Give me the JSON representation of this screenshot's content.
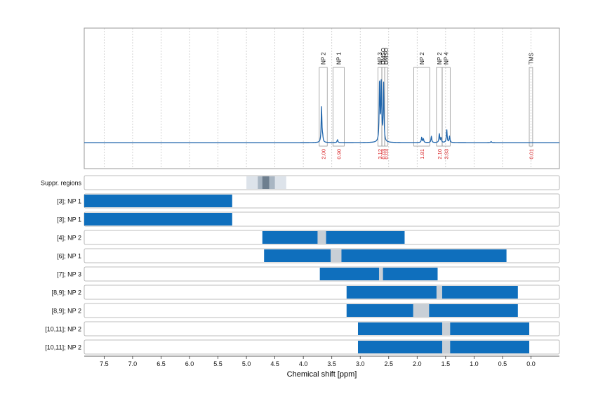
{
  "chart_data": {
    "type": "nmr-spectrum-with-region-bars",
    "xlabel": "Chemical shift [ppm]",
    "x_ticks": [
      "7.5",
      "7.0",
      "6.5",
      "6.0",
      "5.5",
      "5.0",
      "4.5",
      "4.0",
      "3.5",
      "3.0",
      "2.5",
      "2.0",
      "1.5",
      "1.0",
      "0.5",
      "0.0"
    ],
    "x_tick_values": [
      7.5,
      7.0,
      6.5,
      6.0,
      5.5,
      5.0,
      4.5,
      4.0,
      3.5,
      3.0,
      2.5,
      2.0,
      1.5,
      1.0,
      0.5,
      0.0
    ],
    "xlim": [
      7.85,
      -0.5
    ],
    "x_reversed": true,
    "grid": true,
    "colors": {
      "spectrum": "#2166ac",
      "bar": "#0f6fbd",
      "gap": "#c8cfd6",
      "integral": "#d7191c",
      "suppr_light": "#dde3ea",
      "suppr_mid": "#a9b6c3",
      "suppr_dark": "#6e7f8f"
    },
    "spectrum_peaks": [
      {
        "ppm": 3.68,
        "height": 0.95
      },
      {
        "ppm": 3.66,
        "height": 0.12
      },
      {
        "ppm": 3.4,
        "height": 0.08
      },
      {
        "ppm": 2.66,
        "height": 1.68
      },
      {
        "ppm": 2.63,
        "height": 1.55
      },
      {
        "ppm": 2.59,
        "height": 1.55
      },
      {
        "ppm": 1.92,
        "height": 0.14
      },
      {
        "ppm": 1.89,
        "height": 0.1
      },
      {
        "ppm": 1.75,
        "height": 0.17
      },
      {
        "ppm": 1.61,
        "height": 0.24
      },
      {
        "ppm": 1.58,
        "height": 0.13
      },
      {
        "ppm": 1.48,
        "height": 0.36
      },
      {
        "ppm": 1.43,
        "height": 0.17
      },
      {
        "ppm": 0.7,
        "height": 0.03
      }
    ],
    "annotations": [
      {
        "labels": [
          "NP 2"
        ],
        "from": 3.72,
        "to": 3.58,
        "integral": "2.00"
      },
      {
        "labels": [
          "NP 1"
        ],
        "from": 3.48,
        "to": 3.28,
        "integral": "0.90"
      },
      {
        "labels": [
          "NP 3"
        ],
        "from": 2.69,
        "to": 2.62,
        "integral": "3.12"
      },
      {
        "labels": [
          "DMSO"
        ],
        "from": 2.62,
        "to": 2.57,
        "integral": "0.03"
      },
      {
        "labels": [
          "DMSO"
        ],
        "from": 2.57,
        "to": 2.52,
        "integral": "0.03"
      },
      {
        "labels": [
          "NP 2"
        ],
        "from": 2.06,
        "to": 1.78,
        "integral": "1.81"
      },
      {
        "labels": [
          "NP 2"
        ],
        "from": 1.66,
        "to": 1.56,
        "integral": "2.10"
      },
      {
        "labels": [
          "NP 4"
        ],
        "from": 1.56,
        "to": 1.42,
        "integral": "3.93"
      },
      {
        "labels": [
          "TMS"
        ],
        "from": 0.03,
        "to": -0.03,
        "integral": "0.01"
      }
    ],
    "rows": [
      {
        "label": "Suppr. regions",
        "kind": "suppression",
        "regions": [
          {
            "from": 5.0,
            "to": 4.3,
            "shade": "light"
          },
          {
            "from": 4.8,
            "to": 4.5,
            "shade": "mid"
          },
          {
            "from": 4.72,
            "to": 4.6,
            "shade": "dark"
          }
        ]
      },
      {
        "label": "[3]; NP 1",
        "kind": "bar",
        "from": 7.85,
        "to": 5.25,
        "gaps": []
      },
      {
        "label": "[3]; NP 1",
        "kind": "bar",
        "from": 7.85,
        "to": 5.25,
        "gaps": []
      },
      {
        "label": "[4]; NP 2",
        "kind": "bar",
        "from": 4.72,
        "to": 2.22,
        "gaps": [
          {
            "from": 3.75,
            "to": 3.6
          }
        ]
      },
      {
        "label": "[6]; NP 1",
        "kind": "bar",
        "from": 4.69,
        "to": 0.43,
        "gaps": [
          {
            "from": 3.52,
            "to": 3.33
          }
        ]
      },
      {
        "label": "[7]; NP 3",
        "kind": "bar",
        "from": 3.71,
        "to": 1.64,
        "gaps": [
          {
            "from": 2.67,
            "to": 2.6
          }
        ]
      },
      {
        "label": "[8,9]; NP 2",
        "kind": "bar",
        "from": 3.24,
        "to": 0.23,
        "gaps": [
          {
            "from": 1.66,
            "to": 1.56
          }
        ]
      },
      {
        "label": "[8,9]; NP 2",
        "kind": "bar",
        "from": 3.24,
        "to": 0.23,
        "gaps": [
          {
            "from": 2.07,
            "to": 1.79
          }
        ]
      },
      {
        "label": "[10,11]; NP 2",
        "kind": "bar",
        "from": 3.04,
        "to": 0.03,
        "gaps": [
          {
            "from": 1.56,
            "to": 1.42
          }
        ]
      },
      {
        "label": "[10,11]; NP 2",
        "kind": "bar",
        "from": 3.04,
        "to": 0.03,
        "gaps": [
          {
            "from": 1.56,
            "to": 1.42
          }
        ]
      }
    ]
  }
}
